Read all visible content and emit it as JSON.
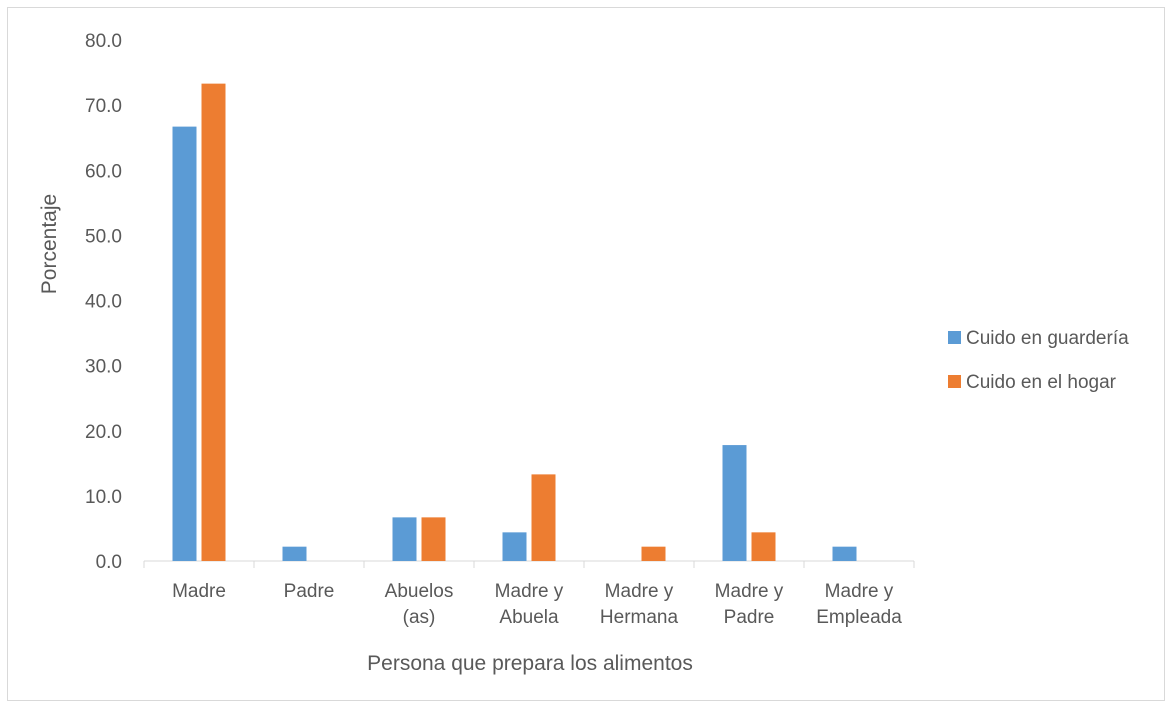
{
  "chart_data": {
    "type": "bar",
    "title": "",
    "xlabel": "Persona que prepara los alimentos",
    "ylabel": "Porcentaje",
    "ylim": [
      0,
      80
    ],
    "yticks": [
      "0.0",
      "10.0",
      "20.0",
      "30.0",
      "40.0",
      "50.0",
      "60.0",
      "70.0",
      "80.0"
    ],
    "categories": [
      [
        "Madre"
      ],
      [
        "Padre"
      ],
      [
        "Abuelos",
        "(as)"
      ],
      [
        "Madre y",
        "Abuela"
      ],
      [
        "Madre y",
        "Hermana"
      ],
      [
        "Madre y",
        "Padre"
      ],
      [
        "Madre y",
        "Empleada"
      ]
    ],
    "series": [
      {
        "name": "Cuido en guardería",
        "color": "#5b9bd5",
        "values": [
          66.7,
          2.2,
          6.7,
          4.4,
          0,
          17.8,
          2.2
        ]
      },
      {
        "name": "Cuido en el hogar",
        "color": "#ed7d31",
        "values": [
          73.3,
          0,
          6.7,
          13.3,
          2.2,
          4.4,
          0
        ]
      }
    ],
    "grid": false,
    "legend_position": "right"
  }
}
